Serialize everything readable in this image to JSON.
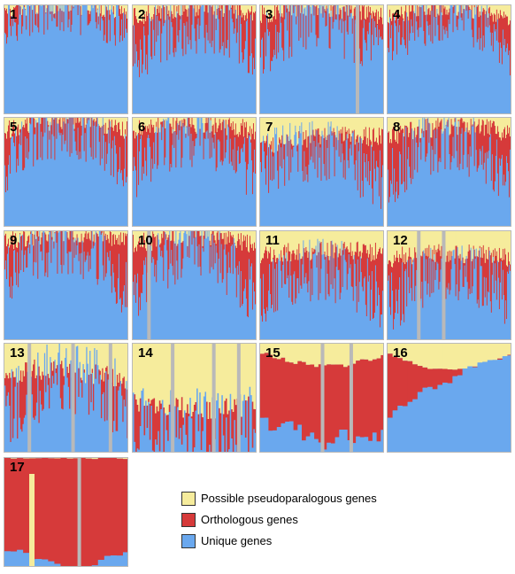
{
  "chart_data": {
    "type": "area",
    "stacking": "percent",
    "colors": {
      "unique": "#6aa8ee",
      "orthologous": "#d63a3a",
      "pseudoparalogous": "#f6ec9c",
      "gap": "#b9b9b9",
      "frame": "#b9b9b9"
    },
    "legend": [
      {
        "key": "pseudoparalogous",
        "label": "Possible pseudoparalogous genes",
        "color": "#f6ec9c"
      },
      {
        "key": "orthologous",
        "label": "Orthologous genes",
        "color": "#d63a3a"
      },
      {
        "key": "unique",
        "label": "Unique genes",
        "color": "#6aa8ee"
      }
    ],
    "series_order": [
      "unique",
      "orthologous",
      "pseudoparalogous"
    ],
    "panels": [
      {
        "label": "1",
        "bins": 140,
        "unique_pct": [
          85,
          95,
          78
        ],
        "pseudo_pct": [
          8,
          2,
          8
        ],
        "noise": 22,
        "gaps": []
      },
      {
        "label": "2",
        "bins": 140,
        "unique_pct": [
          55,
          85,
          60
        ],
        "pseudo_pct": [
          10,
          3,
          8
        ],
        "noise": 30,
        "gaps": []
      },
      {
        "label": "3",
        "bins": 140,
        "unique_pct": [
          60,
          88,
          45
        ],
        "pseudo_pct": [
          8,
          3,
          10
        ],
        "noise": 30,
        "gaps": [
          0.78
        ]
      },
      {
        "label": "4",
        "bins": 140,
        "unique_pct": [
          65,
          90,
          55
        ],
        "pseudo_pct": [
          12,
          3,
          15
        ],
        "noise": 25,
        "gaps": []
      },
      {
        "label": "5",
        "bins": 140,
        "unique_pct": [
          58,
          90,
          55
        ],
        "pseudo_pct": [
          12,
          3,
          12
        ],
        "noise": 28,
        "gaps": []
      },
      {
        "label": "6",
        "bins": 140,
        "unique_pct": [
          50,
          85,
          45
        ],
        "pseudo_pct": [
          12,
          6,
          12
        ],
        "noise": 30,
        "gaps": []
      },
      {
        "label": "7",
        "bins": 140,
        "unique_pct": [
          55,
          70,
          40
        ],
        "pseudo_pct": [
          25,
          18,
          18
        ],
        "noise": 30,
        "gaps": []
      },
      {
        "label": "8",
        "bins": 140,
        "unique_pct": [
          45,
          80,
          40
        ],
        "pseudo_pct": [
          18,
          8,
          15
        ],
        "noise": 30,
        "gaps": []
      },
      {
        "label": "9",
        "bins": 140,
        "unique_pct": [
          55,
          88,
          45
        ],
        "pseudo_pct": [
          10,
          3,
          8
        ],
        "noise": 28,
        "gaps": []
      },
      {
        "label": "10",
        "bins": 140,
        "unique_pct": [
          40,
          85,
          35
        ],
        "pseudo_pct": [
          12,
          6,
          12
        ],
        "noise": 30,
        "gaps": [
          0.13
        ]
      },
      {
        "label": "11",
        "bins": 140,
        "unique_pct": [
          40,
          65,
          35
        ],
        "pseudo_pct": [
          22,
          18,
          20
        ],
        "noise": 30,
        "gaps": []
      },
      {
        "label": "12",
        "bins": 140,
        "unique_pct": [
          35,
          60,
          40
        ],
        "pseudo_pct": [
          25,
          20,
          25
        ],
        "noise": 30,
        "gaps": [
          0.25,
          0.45
        ]
      },
      {
        "label": "13",
        "bins": 110,
        "unique_pct": [
          35,
          70,
          40
        ],
        "pseudo_pct": [
          28,
          25,
          35
        ],
        "noise": 35,
        "gaps": [
          0.2,
          0.55,
          0.85
        ]
      },
      {
        "label": "14",
        "bins": 90,
        "unique_pct": [
          25,
          25,
          30
        ],
        "pseudo_pct": [
          50,
          60,
          55
        ],
        "noise": 35,
        "gaps": [
          0.32,
          0.65,
          0.85
        ]
      },
      {
        "label": "15",
        "bins": 30,
        "unique_pct": [
          15,
          15,
          15
        ],
        "pseudo_pct": [
          10,
          20,
          10
        ],
        "noise": 18,
        "gaps": [
          0.5,
          0.73
        ]
      },
      {
        "label": "16",
        "bins": 25,
        "unique_pct": [
          40,
          70,
          90
        ],
        "pseudo_pct": [
          10,
          25,
          8
        ],
        "noise": 8,
        "gaps": []
      },
      {
        "label": "17",
        "bins": 20,
        "unique_pct": [
          20,
          0,
          20
        ],
        "pseudo_pct": [
          0,
          0,
          0
        ],
        "noise": 6,
        "gaps": [
          0.6
        ],
        "yellow_bar": 0.22
      }
    ]
  }
}
